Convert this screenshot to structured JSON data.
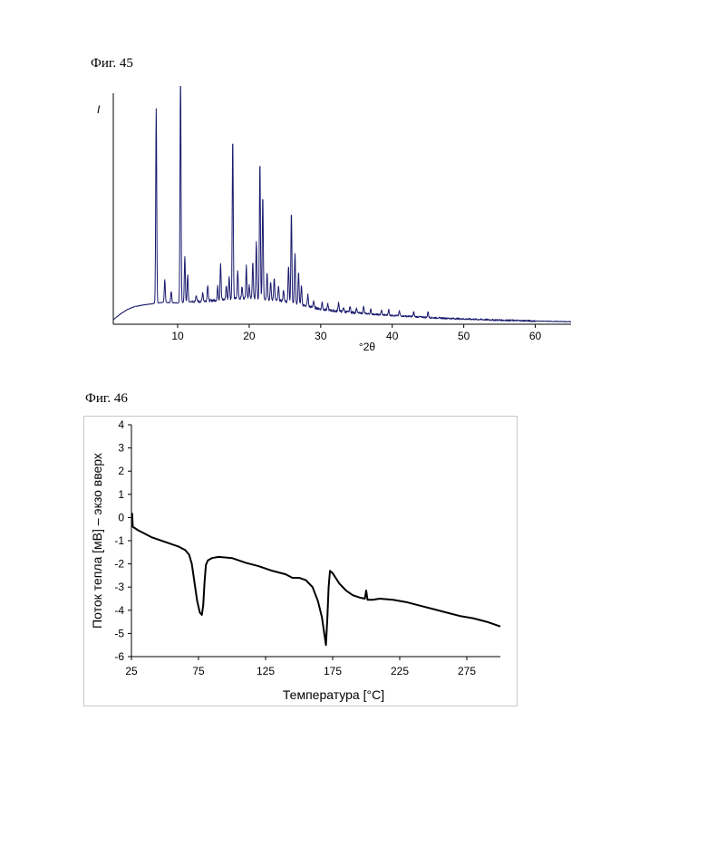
{
  "figures": {
    "fig45": "Фиг. 45",
    "fig46": "Фиг. 46"
  },
  "chart_data": [
    {
      "type": "line",
      "ylabel": "I",
      "xlabel": "°2θ",
      "xlim": [
        1,
        65
      ],
      "x_ticks": [
        10,
        20,
        30,
        40,
        50,
        60
      ],
      "y_ticks_shown": false,
      "grid": false,
      "line_color": "#1a1a6e",
      "baseline": [
        [
          1,
          2
        ],
        [
          2,
          4.5
        ],
        [
          3,
          6.5
        ],
        [
          4,
          7.7
        ],
        [
          5,
          8.3
        ],
        [
          6,
          8.8
        ],
        [
          7,
          9.2
        ],
        [
          8,
          9.5
        ],
        [
          9,
          9.4
        ],
        [
          10,
          9.3
        ],
        [
          11,
          9.6
        ],
        [
          12,
          9.8
        ],
        [
          13,
          9.9
        ],
        [
          14,
          10.2
        ],
        [
          15,
          10.4
        ],
        [
          16,
          10.6
        ],
        [
          17,
          11
        ],
        [
          18,
          11.2
        ],
        [
          19,
          11.4
        ],
        [
          20,
          11.3
        ],
        [
          21,
          11.2
        ],
        [
          22,
          11
        ],
        [
          23,
          10.7
        ],
        [
          24,
          10.4
        ],
        [
          25,
          10
        ],
        [
          26,
          9.5
        ],
        [
          27,
          8.8
        ],
        [
          28,
          8
        ],
        [
          29,
          7.3
        ],
        [
          30,
          6.6
        ],
        [
          32,
          5.8
        ],
        [
          35,
          5
        ],
        [
          38,
          4.2
        ],
        [
          42,
          3.5
        ],
        [
          46,
          2.8
        ],
        [
          50,
          2.3
        ],
        [
          55,
          1.8
        ],
        [
          60,
          1.4
        ],
        [
          65,
          1.1
        ]
      ],
      "peaks": [
        [
          7,
          85
        ],
        [
          8.2,
          10
        ],
        [
          9.1,
          5
        ],
        [
          10.4,
          100
        ],
        [
          11,
          20
        ],
        [
          11.4,
          12
        ],
        [
          12.6,
          3
        ],
        [
          13.5,
          4
        ],
        [
          14.2,
          7
        ],
        [
          15.6,
          6
        ],
        [
          16,
          16
        ],
        [
          16.8,
          6
        ],
        [
          17.2,
          10
        ],
        [
          17.7,
          70
        ],
        [
          18.4,
          12
        ],
        [
          19,
          5
        ],
        [
          19.6,
          14
        ],
        [
          20,
          6
        ],
        [
          20.5,
          16
        ],
        [
          21,
          25
        ],
        [
          21.5,
          60
        ],
        [
          21.9,
          45
        ],
        [
          22.5,
          12
        ],
        [
          23,
          8
        ],
        [
          23.5,
          10
        ],
        [
          24.1,
          6
        ],
        [
          24.8,
          5
        ],
        [
          25.5,
          16
        ],
        [
          25.9,
          40
        ],
        [
          26.4,
          22
        ],
        [
          26.9,
          14
        ],
        [
          27.3,
          8
        ],
        [
          28.2,
          5
        ],
        [
          29,
          3
        ],
        [
          30.2,
          3
        ],
        [
          31,
          2.5
        ],
        [
          32.5,
          4
        ],
        [
          33.2,
          2
        ],
        [
          34.1,
          2.5
        ],
        [
          35,
          2
        ],
        [
          36,
          3
        ],
        [
          37,
          2
        ],
        [
          38.5,
          2
        ],
        [
          39.5,
          2.5
        ],
        [
          41,
          2
        ],
        [
          43,
          2
        ],
        [
          45,
          2.5
        ]
      ],
      "noise_until": 60
    },
    {
      "type": "line",
      "xlabel": "Температура [°C]",
      "ylabel": "Поток тепла [мВ] – экзо вверх",
      "xlim": [
        25,
        300
      ],
      "ylim": [
        -6,
        4
      ],
      "x_ticks": [
        25,
        75,
        125,
        175,
        225,
        275
      ],
      "y_ticks": [
        -6,
        -5,
        -4,
        -3,
        -2,
        -1,
        0,
        1,
        2,
        3,
        4
      ],
      "grid": false,
      "line_color": "#000000",
      "points": [
        [
          25.5,
          0.2
        ],
        [
          26,
          -0.4
        ],
        [
          30,
          -0.55
        ],
        [
          40,
          -0.85
        ],
        [
          50,
          -1.05
        ],
        [
          60,
          -1.25
        ],
        [
          65,
          -1.4
        ],
        [
          68,
          -1.6
        ],
        [
          70,
          -2
        ],
        [
          72,
          -2.8
        ],
        [
          74,
          -3.6
        ],
        [
          76,
          -4.1
        ],
        [
          77.5,
          -4.2
        ],
        [
          78.5,
          -3.8
        ],
        [
          79.5,
          -2.8
        ],
        [
          80.5,
          -2.05
        ],
        [
          82,
          -1.85
        ],
        [
          85,
          -1.75
        ],
        [
          90,
          -1.7
        ],
        [
          100,
          -1.75
        ],
        [
          110,
          -1.95
        ],
        [
          120,
          -2.1
        ],
        [
          130,
          -2.3
        ],
        [
          140,
          -2.45
        ],
        [
          145,
          -2.6
        ],
        [
          150,
          -2.6
        ],
        [
          155,
          -2.7
        ],
        [
          160,
          -3
        ],
        [
          164,
          -3.6
        ],
        [
          167,
          -4.3
        ],
        [
          169,
          -5.1
        ],
        [
          170,
          -5.5
        ],
        [
          171,
          -4.4
        ],
        [
          172,
          -3
        ],
        [
          173,
          -2.3
        ],
        [
          175,
          -2.4
        ],
        [
          180,
          -2.85
        ],
        [
          185,
          -3.15
        ],
        [
          190,
          -3.35
        ],
        [
          195,
          -3.45
        ],
        [
          199,
          -3.5
        ],
        [
          200,
          -3.15
        ],
        [
          201,
          -3.55
        ],
        [
          205,
          -3.55
        ],
        [
          210,
          -3.5
        ],
        [
          220,
          -3.55
        ],
        [
          230,
          -3.65
        ],
        [
          240,
          -3.8
        ],
        [
          250,
          -3.95
        ],
        [
          260,
          -4.1
        ],
        [
          270,
          -4.25
        ],
        [
          280,
          -4.35
        ],
        [
          290,
          -4.5
        ],
        [
          300,
          -4.7
        ]
      ]
    }
  ]
}
